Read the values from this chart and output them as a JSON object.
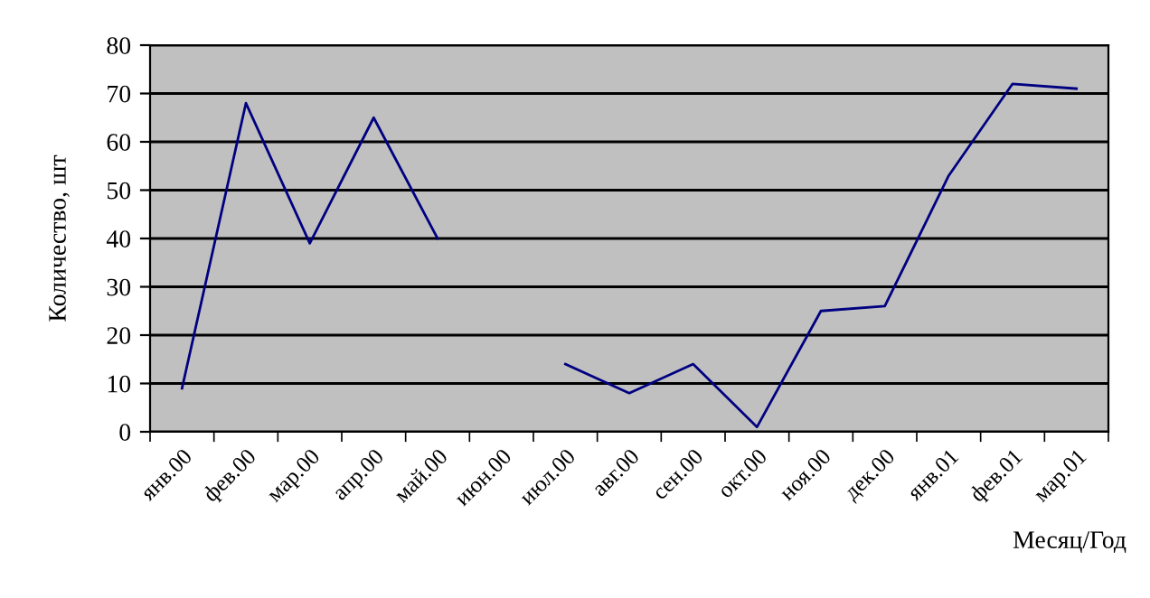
{
  "chart_data": {
    "type": "line",
    "ylabel": "Количество, шт",
    "xlabel": "Месяц/Год",
    "categories": [
      "янв.00",
      "фев.00",
      "мар.00",
      "апр.00",
      "май.00",
      "июн.00",
      "июл.00",
      "авг.00",
      "сен.00",
      "окт.00",
      "ноя.00",
      "дек.00",
      "янв.01",
      "фев.01",
      "мар.01"
    ],
    "series": [
      {
        "color": "#000080",
        "values": [
          9,
          68,
          39,
          65,
          40,
          null,
          14,
          8,
          14,
          1,
          25,
          26,
          53,
          72,
          71
        ]
      }
    ],
    "ylim": [
      0,
      80
    ],
    "yticks": [
      0,
      10,
      20,
      30,
      40,
      50,
      60,
      70,
      80
    ],
    "grid": "y",
    "legend": false,
    "marker": "none",
    "line_style": "solid"
  }
}
